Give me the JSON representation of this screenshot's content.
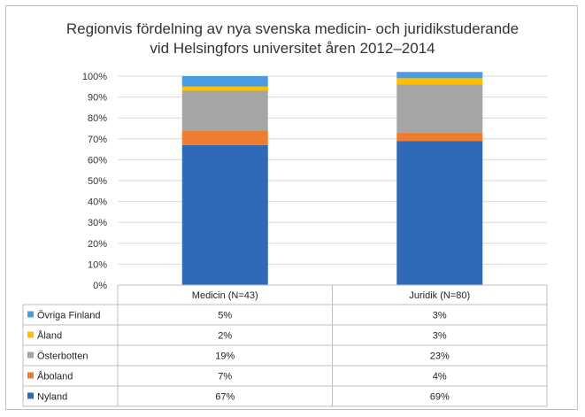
{
  "chart_data": {
    "type": "bar",
    "stacked": true,
    "title_line1": "Regionvis fördelning av nya svenska medicin- och juridikstuderande",
    "title_line2": "vid Helsingfors universitet åren 2012–2014",
    "categories": [
      "Medicin (N=43)",
      "Juridik (N=80)"
    ],
    "ylim": [
      0,
      100
    ],
    "yticks": [
      "0%",
      "10%",
      "20%",
      "30%",
      "40%",
      "50%",
      "60%",
      "70%",
      "80%",
      "90%",
      "100%"
    ],
    "grid": true,
    "legend_placement": "data-table-left",
    "series": [
      {
        "name": "Nyland",
        "color": "#2e6ab8",
        "values": [
          67,
          69
        ],
        "labels": [
          "67%",
          "69%"
        ]
      },
      {
        "name": "Åboland",
        "color": "#ed7d31",
        "values": [
          7,
          4
        ],
        "labels": [
          "7%",
          "4%"
        ]
      },
      {
        "name": "Österbotten",
        "color": "#a5a5a5",
        "values": [
          19,
          23
        ],
        "labels": [
          "19%",
          "23%"
        ]
      },
      {
        "name": "Åland",
        "color": "#ffc000",
        "values": [
          2,
          3
        ],
        "labels": [
          "2%",
          "3%"
        ]
      },
      {
        "name": "Övriga Finland",
        "color": "#4a9be0",
        "values": [
          5,
          3
        ],
        "labels": [
          "5%",
          "3%"
        ]
      }
    ]
  }
}
